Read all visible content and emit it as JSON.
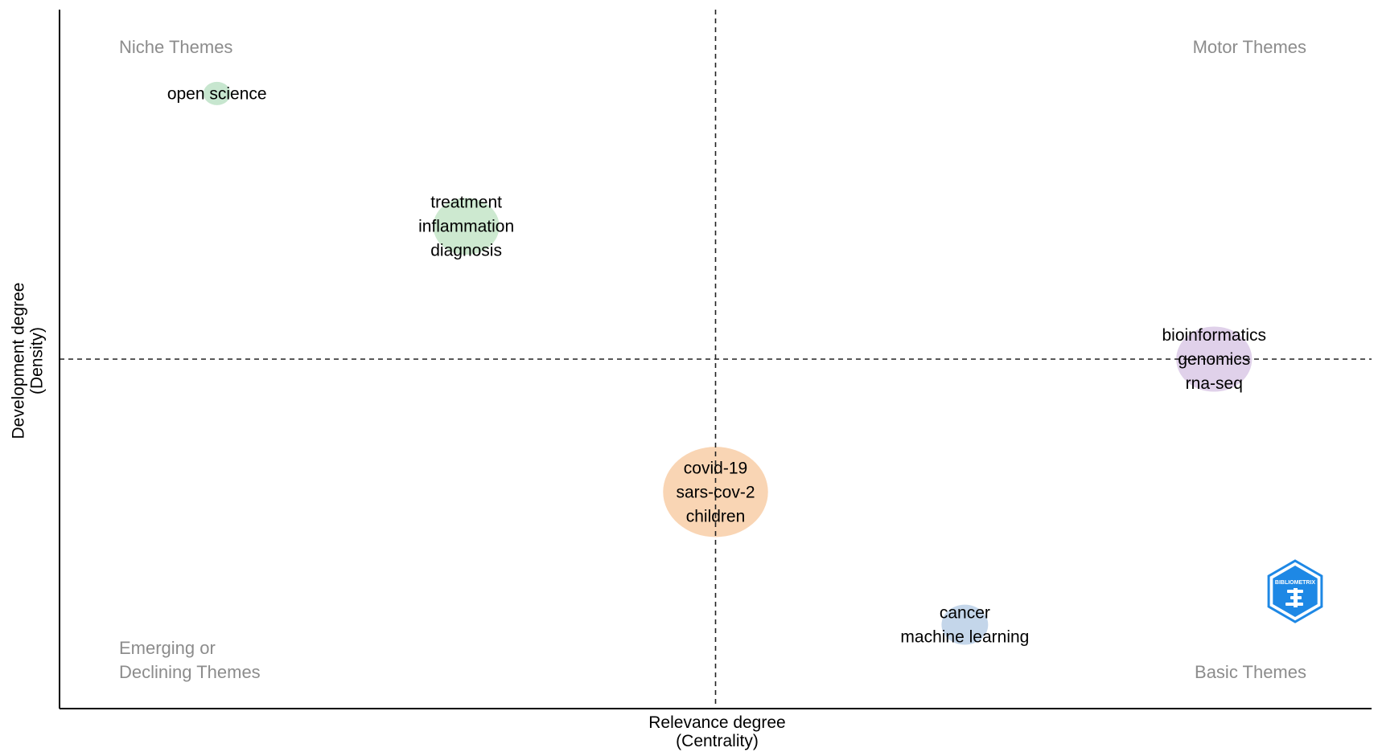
{
  "chart_data": {
    "type": "scatter",
    "xlabel": [
      "Relevance degree",
      "(Centrality)"
    ],
    "ylabel": [
      "Development degree",
      "(Density)"
    ],
    "quadrants": {
      "top_left": [
        "Niche Themes"
      ],
      "top_right": [
        "Motor Themes"
      ],
      "bottom_left": [
        "Emerging or",
        "Declining Themes"
      ],
      "bottom_right": [
        "Basic Themes"
      ]
    },
    "xlim": [
      0,
      100
    ],
    "ylim": [
      0,
      100
    ],
    "x_divider": 50,
    "y_divider": 50,
    "points": [
      {
        "id": "open-science",
        "x": 12,
        "y": 88,
        "size": 1,
        "color": "#c7e6cf",
        "labels": [
          "open science"
        ]
      },
      {
        "id": "treatment",
        "x": 31,
        "y": 69,
        "size": 5,
        "color": "#cde9d0",
        "labels": [
          "treatment",
          "inflammation",
          "diagnosis"
        ]
      },
      {
        "id": "bioinformatics",
        "x": 88,
        "y": 50,
        "size": 6,
        "color": "#e0d1ea",
        "labels": [
          "bioinformatics",
          "genomics",
          "rna-seq"
        ]
      },
      {
        "id": "covid",
        "x": 50,
        "y": 31,
        "size": 9,
        "color": "#f9d5b4",
        "labels": [
          "covid-19",
          "sars-cov-2",
          "children"
        ]
      },
      {
        "id": "cancer",
        "x": 69,
        "y": 12,
        "size": 3,
        "color": "#c4d6ea",
        "labels": [
          "cancer",
          "machine learning"
        ]
      }
    ],
    "logo": {
      "text": "BIBLIOMETRIX",
      "color": "#1e88e5"
    }
  }
}
